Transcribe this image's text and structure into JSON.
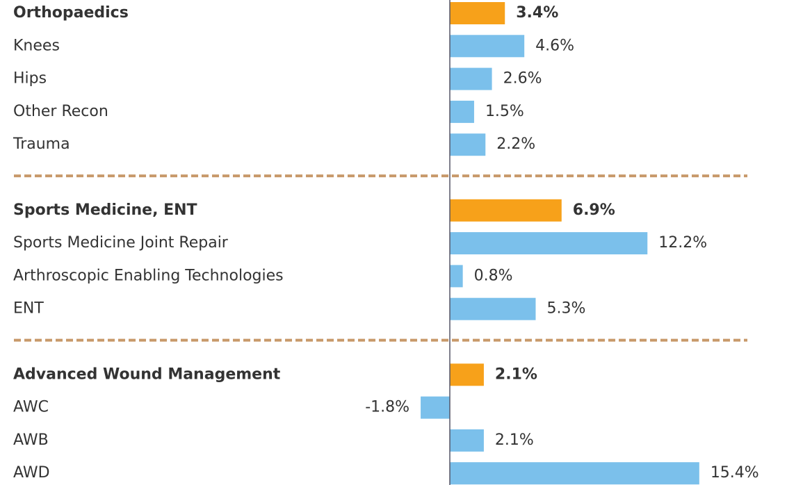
{
  "chart_data": {
    "type": "bar",
    "orientation": "horizontal",
    "xlim": [
      -2,
      16
    ],
    "group_color": "#f7a11a",
    "item_color": "#7bc0eb",
    "separator_color": "#c8996a",
    "groups": [
      {
        "name": "Orthopaedics",
        "value": 3.4,
        "value_label": "3.4%",
        "items": [
          {
            "name": "Knees",
            "value": 4.6,
            "value_label": "4.6%"
          },
          {
            "name": "Hips",
            "value": 2.6,
            "value_label": "2.6%"
          },
          {
            "name": "Other Recon",
            "value": 1.5,
            "value_label": "1.5%"
          },
          {
            "name": "Trauma",
            "value": 2.2,
            "value_label": "2.2%"
          }
        ]
      },
      {
        "name": "Sports Medicine, ENT",
        "value": 6.9,
        "value_label": "6.9%",
        "items": [
          {
            "name": "Sports Medicine Joint Repair",
            "value": 12.2,
            "value_label": "12.2%"
          },
          {
            "name": "Arthroscopic Enabling Technologies",
            "value": 0.8,
            "value_label": "0.8%"
          },
          {
            "name": "ENT",
            "value": 5.3,
            "value_label": "5.3%"
          }
        ]
      },
      {
        "name": "Advanced Wound Management",
        "value": 2.1,
        "value_label": "2.1%",
        "items": [
          {
            "name": "AWC",
            "value": -1.8,
            "value_label": "-1.8%"
          },
          {
            "name": "AWB",
            "value": 2.1,
            "value_label": "2.1%"
          },
          {
            "name": "AWD",
            "value": 15.4,
            "value_label": "15.4%"
          }
        ]
      }
    ]
  }
}
